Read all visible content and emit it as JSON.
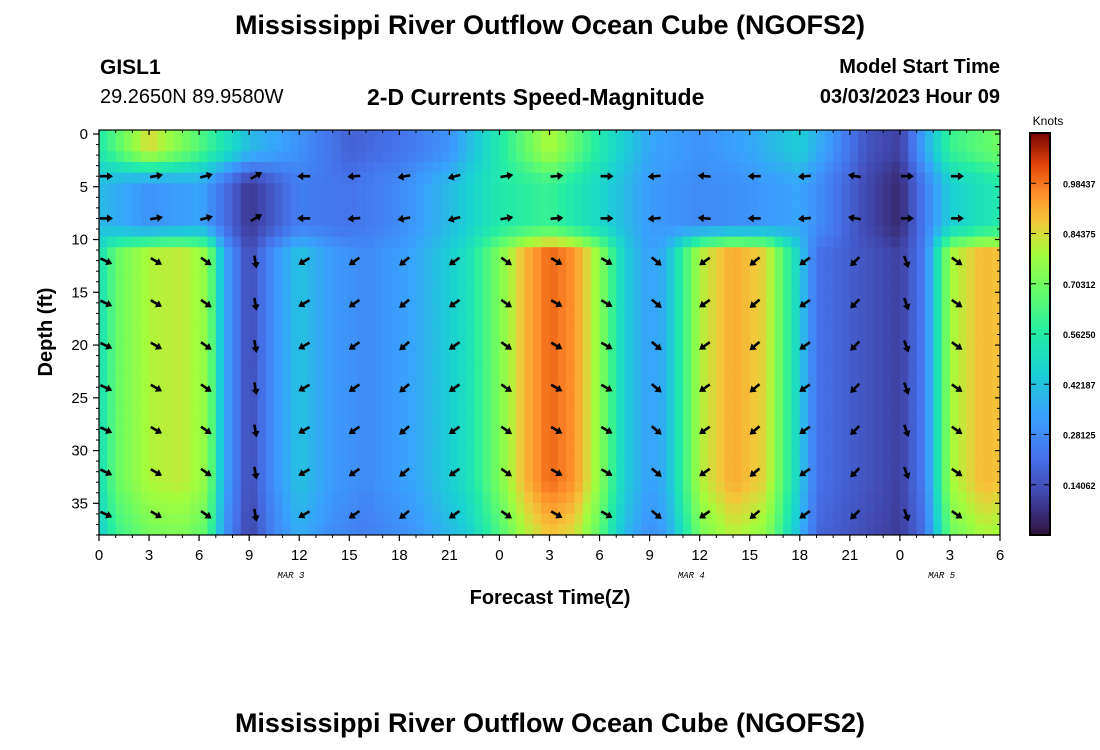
{
  "header": {
    "title": "Mississippi River Outflow Ocean Cube (NGOFS2)",
    "station": "GISL1",
    "coordinates": "29.2650N  89.9580W",
    "subtitle": "2-D Currents Speed-Magnitude",
    "model_start_label": "Model Start Time",
    "model_start_value": "03/03/2023 Hour 09"
  },
  "footer": {
    "title": "Mississippi River Outflow Ocean Cube (NGOFS2)"
  },
  "chart_data": {
    "type": "heatmap",
    "xlabel": "Forecast Time(Z)",
    "ylabel": "Depth (ft)",
    "x_tick_labels": [
      "0",
      "3",
      "6",
      "9",
      "12",
      "15",
      "18",
      "21",
      "0",
      "3",
      "6",
      "9",
      "12",
      "15",
      "18",
      "21",
      "0",
      "3",
      "6"
    ],
    "date_labels": [
      {
        "label": "MAR 3",
        "hour_index": 11.5
      },
      {
        "label": "MAR 4",
        "hour_index": 35.5
      },
      {
        "label": "MAR 5",
        "hour_index": 50.5
      }
    ],
    "x_range_hours": [
      0,
      54
    ],
    "y_tick_labels": [
      "0",
      "5",
      "10",
      "15",
      "20",
      "25",
      "30",
      "35"
    ],
    "ylim": [
      38,
      0
    ],
    "colorbar": {
      "unit": "Knots",
      "tick_labels": [
        "0.98437",
        "0.84375",
        "0.70312",
        "0.56250",
        "0.42187",
        "0.28125",
        "0.14062"
      ],
      "tick_values": [
        0.98437,
        0.84375,
        0.70312,
        0.5625,
        0.42187,
        0.28125,
        0.14062
      ],
      "range": [
        0,
        1.125
      ]
    },
    "speed_profile_deep": [
      {
        "hour": 0,
        "speed": 0.5
      },
      {
        "hour": 1,
        "speed": 0.68
      },
      {
        "hour": 3,
        "speed": 0.8
      },
      {
        "hour": 5,
        "speed": 0.82
      },
      {
        "hour": 6.5,
        "speed": 0.75
      },
      {
        "hour": 7.5,
        "speed": 0.35
      },
      {
        "hour": 9,
        "speed": 0.12
      },
      {
        "hour": 10.5,
        "speed": 0.3
      },
      {
        "hour": 12,
        "speed": 0.42
      },
      {
        "hour": 14,
        "speed": 0.32
      },
      {
        "hour": 16,
        "speed": 0.28
      },
      {
        "hour": 19,
        "speed": 0.35
      },
      {
        "hour": 22,
        "speed": 0.5
      },
      {
        "hour": 24,
        "speed": 0.72
      },
      {
        "hour": 25.5,
        "speed": 0.9
      },
      {
        "hour": 27,
        "speed": 1.0
      },
      {
        "hour": 28.5,
        "speed": 0.95
      },
      {
        "hour": 30,
        "speed": 0.75
      },
      {
        "hour": 31.5,
        "speed": 0.45
      },
      {
        "hour": 33,
        "speed": 0.33
      },
      {
        "hour": 34,
        "speed": 0.38
      },
      {
        "hour": 36,
        "speed": 0.8
      },
      {
        "hour": 38,
        "speed": 0.92
      },
      {
        "hour": 40,
        "speed": 0.85
      },
      {
        "hour": 41.5,
        "speed": 0.55
      },
      {
        "hour": 43,
        "speed": 0.22
      },
      {
        "hour": 48,
        "speed": 0.1
      },
      {
        "hour": 49.5,
        "speed": 0.25
      },
      {
        "hour": 51,
        "speed": 0.78
      },
      {
        "hour": 53,
        "speed": 0.9
      },
      {
        "hour": 54,
        "speed": 0.88
      }
    ],
    "speed_profile_surface": [
      {
        "hour": 0,
        "speed": 0.55
      },
      {
        "hour": 3,
        "speed": 0.85
      },
      {
        "hour": 6,
        "speed": 0.65
      },
      {
        "hour": 9,
        "speed": 0.4
      },
      {
        "hour": 12,
        "speed": 0.3
      },
      {
        "hour": 15,
        "speed": 0.18
      },
      {
        "hour": 18,
        "speed": 0.22
      },
      {
        "hour": 21,
        "speed": 0.3
      },
      {
        "hour": 24,
        "speed": 0.55
      },
      {
        "hour": 27,
        "speed": 0.8
      },
      {
        "hour": 30,
        "speed": 0.55
      },
      {
        "hour": 33,
        "speed": 0.35
      },
      {
        "hour": 36,
        "speed": 0.3
      },
      {
        "hour": 39,
        "speed": 0.35
      },
      {
        "hour": 42,
        "speed": 0.45
      },
      {
        "hour": 46,
        "speed": 0.15
      },
      {
        "hour": 48,
        "speed": 0.1
      },
      {
        "hour": 51,
        "speed": 0.6
      },
      {
        "hour": 54,
        "speed": 0.7
      }
    ],
    "speed_profile_shallow": [
      {
        "hour": 0,
        "speed": 0.4
      },
      {
        "hour": 3,
        "speed": 0.3
      },
      {
        "hour": 6,
        "speed": 0.35
      },
      {
        "hour": 9,
        "speed": 0.08
      },
      {
        "hour": 12,
        "speed": 0.25
      },
      {
        "hour": 15,
        "speed": 0.22
      },
      {
        "hour": 18,
        "speed": 0.28
      },
      {
        "hour": 21,
        "speed": 0.4
      },
      {
        "hour": 24,
        "speed": 0.55
      },
      {
        "hour": 27,
        "speed": 0.6
      },
      {
        "hour": 30,
        "speed": 0.48
      },
      {
        "hour": 33,
        "speed": 0.32
      },
      {
        "hour": 36,
        "speed": 0.28
      },
      {
        "hour": 39,
        "speed": 0.3
      },
      {
        "hour": 42,
        "speed": 0.35
      },
      {
        "hour": 46,
        "speed": 0.12
      },
      {
        "hour": 48,
        "speed": 0.05
      },
      {
        "hour": 51,
        "speed": 0.45
      },
      {
        "hour": 54,
        "speed": 0.55
      }
    ],
    "arrow_columns_hours": [
      0,
      3,
      6,
      9,
      12,
      15,
      18,
      21,
      24,
      27,
      30,
      33,
      36,
      39,
      42,
      45,
      48,
      51
    ],
    "arrow_rows_depth_ft": [
      4,
      8,
      12,
      16,
      20,
      24,
      28,
      32,
      36
    ],
    "arrow_direction_deg_deep": [
      {
        "hour": 0,
        "deg": -25
      },
      {
        "hour": 3,
        "deg": -30
      },
      {
        "hour": 6,
        "deg": -35
      },
      {
        "hour": 9,
        "deg": -80
      },
      {
        "hour": 12,
        "deg": 210
      },
      {
        "hour": 15,
        "deg": 215
      },
      {
        "hour": 18,
        "deg": 220
      },
      {
        "hour": 21,
        "deg": 215
      },
      {
        "hour": 24,
        "deg": -35
      },
      {
        "hour": 27,
        "deg": -30
      },
      {
        "hour": 30,
        "deg": -30
      },
      {
        "hour": 33,
        "deg": -40
      },
      {
        "hour": 36,
        "deg": 215
      },
      {
        "hour": 39,
        "deg": 220
      },
      {
        "hour": 42,
        "deg": 215
      },
      {
        "hour": 45,
        "deg": 225
      },
      {
        "hour": 48,
        "deg": -70
      },
      {
        "hour": 51,
        "deg": -35
      }
    ],
    "arrow_direction_deg_top": [
      {
        "hour": 0,
        "deg": 0
      },
      {
        "hour": 3,
        "deg": 10
      },
      {
        "hour": 6,
        "deg": 15
      },
      {
        "hour": 9,
        "deg": 30
      },
      {
        "hour": 12,
        "deg": 180
      },
      {
        "hour": 15,
        "deg": 185
      },
      {
        "hour": 18,
        "deg": 190
      },
      {
        "hour": 21,
        "deg": 195
      },
      {
        "hour": 24,
        "deg": 10
      },
      {
        "hour": 27,
        "deg": 5
      },
      {
        "hour": 30,
        "deg": 0
      },
      {
        "hour": 33,
        "deg": 185
      },
      {
        "hour": 36,
        "deg": 175
      },
      {
        "hour": 39,
        "deg": 180
      },
      {
        "hour": 42,
        "deg": 185
      },
      {
        "hour": 45,
        "deg": 170
      },
      {
        "hour": 48,
        "deg": 0
      },
      {
        "hour": 51,
        "deg": 0
      }
    ]
  }
}
